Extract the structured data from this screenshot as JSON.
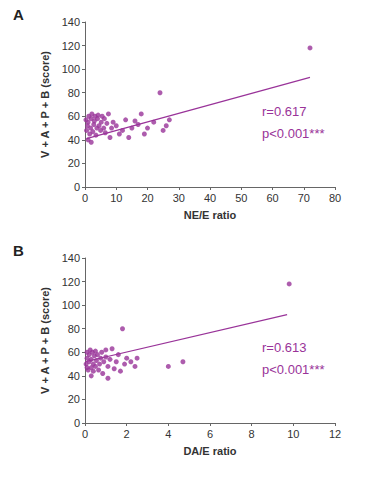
{
  "chart_data": [
    {
      "type": "scatter",
      "panel": "A",
      "color": "#993399",
      "marker": "circle",
      "grid": false,
      "x_label": "NE/E ratio",
      "y_label": "V + A + P + B (score)",
      "annotations": [
        "r=0.617",
        "p<0.001***"
      ],
      "xlim": [
        0,
        80
      ],
      "xticks": [
        0,
        10,
        20,
        30,
        40,
        50,
        60,
        70,
        80
      ],
      "ylim": [
        0,
        140
      ],
      "yticks": [
        0,
        20,
        40,
        60,
        80,
        100,
        120,
        140
      ],
      "x": [
        0.5,
        0.8,
        1,
        1.2,
        1.5,
        1.8,
        2,
        2.2,
        2.5,
        2.8,
        3,
        3.2,
        3.5,
        3.8,
        4,
        4.2,
        4.5,
        5,
        5.2,
        5.5,
        6,
        6.2,
        6.5,
        7,
        7.5,
        8,
        8.5,
        9,
        10,
        11,
        12,
        13,
        14,
        15,
        16,
        17,
        18,
        19,
        20,
        22,
        24,
        25,
        26,
        27,
        72,
        1,
        0.3,
        2
      ],
      "y": [
        48,
        52,
        55,
        60,
        45,
        50,
        58,
        62,
        47,
        53,
        56,
        60,
        44,
        50,
        58,
        61,
        52,
        48,
        55,
        60,
        50,
        58,
        46,
        54,
        62,
        42,
        50,
        55,
        52,
        45,
        48,
        57,
        42,
        50,
        56,
        53,
        62,
        45,
        50,
        55,
        80,
        48,
        52,
        57,
        118,
        40,
        57,
        38
      ],
      "trend": {
        "x": [
          0.5,
          72
        ],
        "y": [
          41,
          93
        ]
      }
    },
    {
      "type": "scatter",
      "panel": "B",
      "color": "#993399",
      "marker": "circle",
      "grid": false,
      "x_label": "DA/E ratio",
      "y_label": "V + A + P + B (score)",
      "annotations": [
        "r=0.613",
        "p<0.001***"
      ],
      "xlim": [
        0,
        12
      ],
      "xticks": [
        0,
        2,
        4,
        6,
        8,
        10,
        12
      ],
      "ylim": [
        0,
        140
      ],
      "yticks": [
        0,
        20,
        40,
        60,
        80,
        100,
        120,
        140
      ],
      "x": [
        0.05,
        0.1,
        0.1,
        0.15,
        0.2,
        0.2,
        0.25,
        0.3,
        0.3,
        0.35,
        0.4,
        0.4,
        0.45,
        0.5,
        0.5,
        0.55,
        0.6,
        0.65,
        0.7,
        0.75,
        0.8,
        0.85,
        0.9,
        1,
        1,
        1.1,
        1.1,
        1.2,
        1.3,
        1.4,
        1.5,
        1.6,
        1.7,
        1.8,
        1.9,
        2,
        2.2,
        2.4,
        2.5,
        4,
        4.7,
        9.8,
        0.1,
        0.3
      ],
      "y": [
        50,
        55,
        60,
        45,
        52,
        58,
        62,
        47,
        54,
        60,
        44,
        50,
        57,
        61,
        48,
        53,
        58,
        45,
        50,
        55,
        60,
        42,
        52,
        56,
        62,
        38,
        48,
        54,
        63,
        46,
        52,
        58,
        44,
        80,
        50,
        55,
        52,
        48,
        55,
        48,
        52,
        118,
        47,
        40
      ],
      "trend": {
        "x": [
          0,
          9.7
        ],
        "y": [
          52,
          92
        ]
      }
    }
  ]
}
